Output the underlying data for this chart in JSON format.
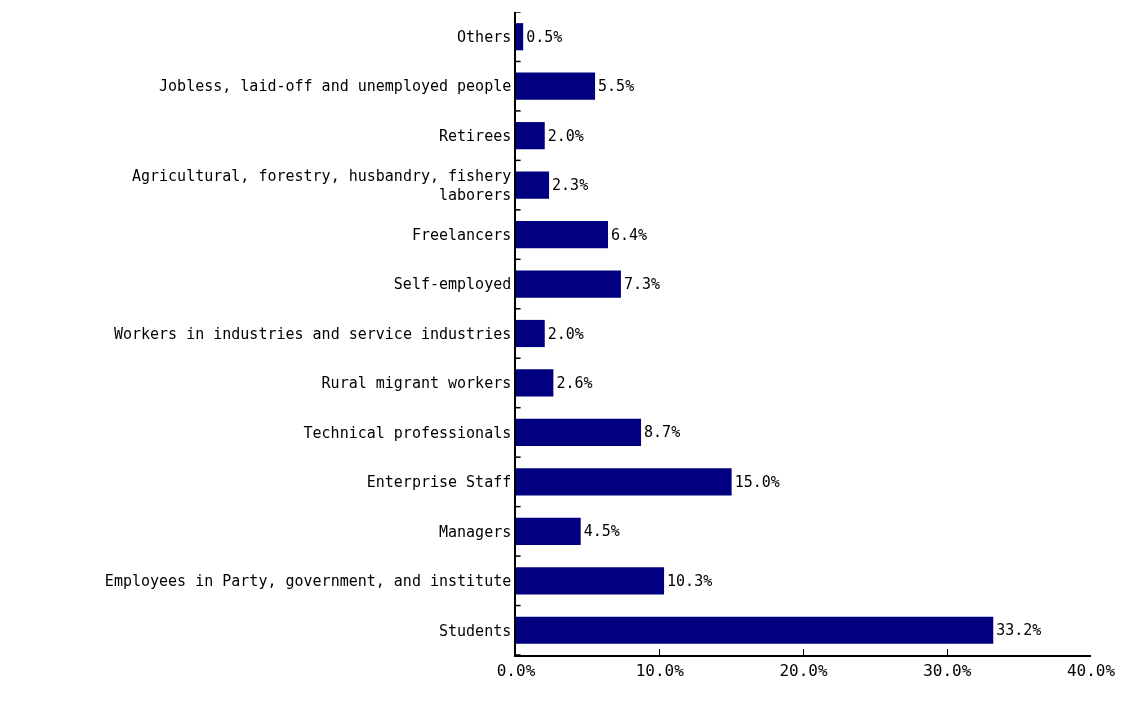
{
  "chart_data": {
    "type": "bar",
    "orientation": "horizontal",
    "categories": [
      "Others",
      "Jobless, laid-off and unemployed people",
      "Retirees",
      "Agricultural, forestry, husbandry, fishery\nlaborers",
      "Freelancers",
      "Self-employed",
      "Workers in industries and service industries",
      "Rural migrant workers",
      "Technical professionals",
      "Enterprise Staff",
      "Managers",
      "Employees in Party, government, and institute",
      "Students"
    ],
    "values": [
      0.5,
      5.5,
      2.0,
      2.3,
      6.4,
      7.3,
      2.0,
      2.6,
      8.7,
      15.0,
      4.5,
      10.3,
      33.2
    ],
    "value_labels": [
      "0.5%",
      "5.5%",
      "2.0%",
      "2.3%",
      "6.4%",
      "7.3%",
      "2.0%",
      "2.6%",
      "8.7%",
      "15.0%",
      "4.5%",
      "10.3%",
      "33.2%"
    ],
    "color": "#000080",
    "xlim": [
      0,
      40
    ],
    "xticks": [
      {
        "value": 0,
        "label": "0.0%"
      },
      {
        "value": 10,
        "label": "10.0%"
      },
      {
        "value": 20,
        "label": "20.0%"
      },
      {
        "value": 30,
        "label": "30.0%"
      },
      {
        "value": 40,
        "label": "40.0%"
      }
    ],
    "legend": false
  }
}
